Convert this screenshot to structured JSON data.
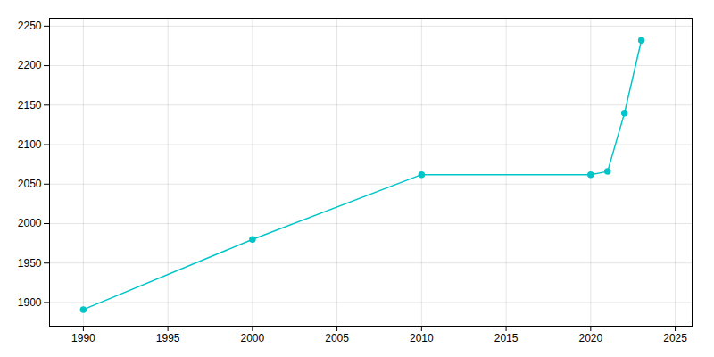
{
  "chart_data": {
    "type": "line",
    "x": [
      1990,
      2000,
      2010,
      2020,
      2021,
      2022,
      2023
    ],
    "values": [
      1891,
      1980,
      2062,
      2062,
      2066,
      2140,
      2232
    ],
    "color": "#00C5C8",
    "marker": "circle",
    "xlim": [
      1988,
      2026
    ],
    "ylim": [
      1870,
      2260
    ],
    "xticks": [
      1990,
      1995,
      2000,
      2005,
      2010,
      2015,
      2020,
      2025
    ],
    "yticks": [
      1900,
      1950,
      2000,
      2050,
      2100,
      2150,
      2200,
      2250
    ],
    "grid": true
  }
}
